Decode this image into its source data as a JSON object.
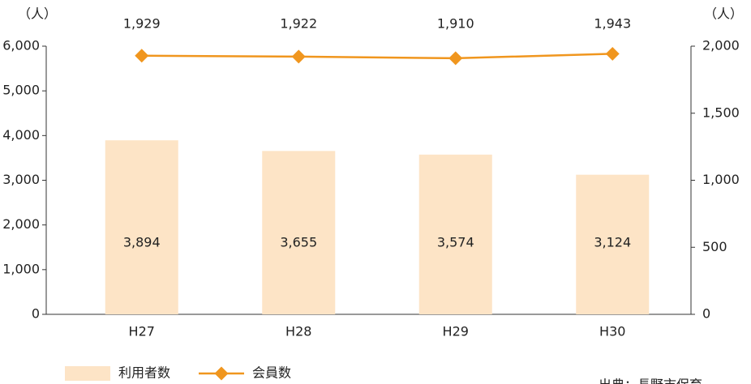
{
  "chart_data": {
    "type": "bar_line",
    "y_unit": "（人）",
    "y2_unit": "（人）",
    "categories": [
      "H27",
      "H28",
      "H29",
      "H30"
    ],
    "series": [
      {
        "name": "利用者数",
        "type": "bar",
        "color": "#fde4c6",
        "values": [
          3894,
          3655,
          3574,
          3124
        ],
        "value_labels": [
          "3,894",
          "3,655",
          "3,574",
          "3,124"
        ]
      },
      {
        "name": "会員数",
        "type": "line",
        "axis": "y2",
        "color": "#f0961e",
        "values": [
          1929,
          1922,
          1910,
          1943
        ],
        "value_labels": [
          "1,929",
          "1,922",
          "1,910",
          "1,943"
        ]
      }
    ],
    "ylim": [
      0,
      6000
    ],
    "yticks": [
      0,
      {
        "value": 1000,
        "label": "1,000"
      },
      {
        "value": 2000,
        "label": "2,000"
      },
      {
        "value": 3000,
        "label": "3,000"
      },
      {
        "value": 4000,
        "label": "4,000"
      },
      {
        "value": 5000,
        "label": "5,000"
      },
      {
        "value": 6000,
        "label": "6,000"
      }
    ],
    "y2lim": [
      0,
      2000
    ],
    "y2ticks": [
      0,
      500,
      {
        "value": 1000,
        "label": "1,000"
      },
      {
        "value": 1500,
        "label": "1,500"
      },
      {
        "value": 2000,
        "label": "2,000"
      }
    ],
    "source": "出典：長野市保育"
  }
}
